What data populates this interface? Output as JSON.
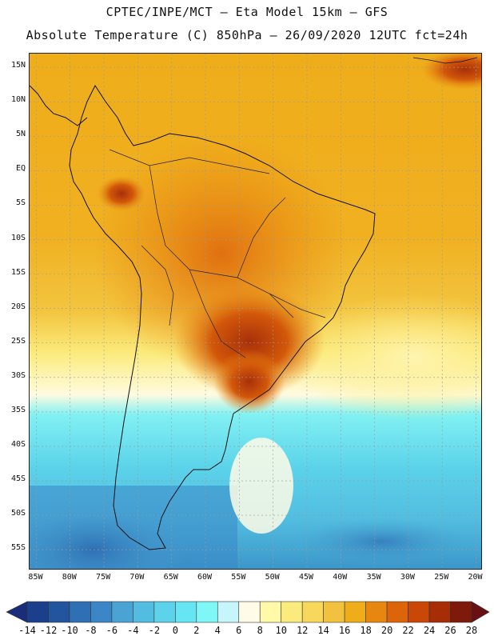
{
  "header": {
    "line1": "CPTEC/INPE/MCT –  Eta Model 15km – GFS",
    "line2": "Absolute Temperature (C) 850hPa – 26/09/2020 12UTC fct=24h"
  },
  "map": {
    "lat_labels": [
      "15N",
      "10N",
      "5N",
      "EQ",
      "5S",
      "10S",
      "15S",
      "20S",
      "25S",
      "30S",
      "35S",
      "40S",
      "45S",
      "50S",
      "55S"
    ],
    "lon_labels": [
      "85W",
      "80W",
      "75W",
      "70W",
      "65W",
      "60W",
      "55W",
      "50W",
      "45W",
      "40W",
      "35W",
      "30W",
      "25W",
      "20W"
    ],
    "lon_range": [
      -86,
      -19
    ],
    "lat_range": [
      -58,
      17
    ],
    "grid": true
  },
  "colorbar": {
    "labels": [
      "-14",
      "-12",
      "-10",
      "-8",
      "-6",
      "-4",
      "-2",
      "0",
      "2",
      "4",
      "6",
      "8",
      "10",
      "12",
      "14",
      "16",
      "18",
      "20",
      "22",
      "24",
      "26",
      "28"
    ],
    "colors": [
      "#1c3f8c",
      "#23559e",
      "#2f6fb4",
      "#3b86c6",
      "#4aa3d2",
      "#52bde0",
      "#5cd3ea",
      "#66e6f2",
      "#80f7f7",
      "#c6f6fb",
      "#fffbe6",
      "#fff9a8",
      "#fbeb7c",
      "#f7d85c",
      "#f2c13e",
      "#efad1a",
      "#e8870f",
      "#dc650a",
      "#c94808",
      "#a62d06",
      "#7d1a0a"
    ],
    "low_color": "#1a2d7a",
    "high_color": "#6a0f12"
  }
}
